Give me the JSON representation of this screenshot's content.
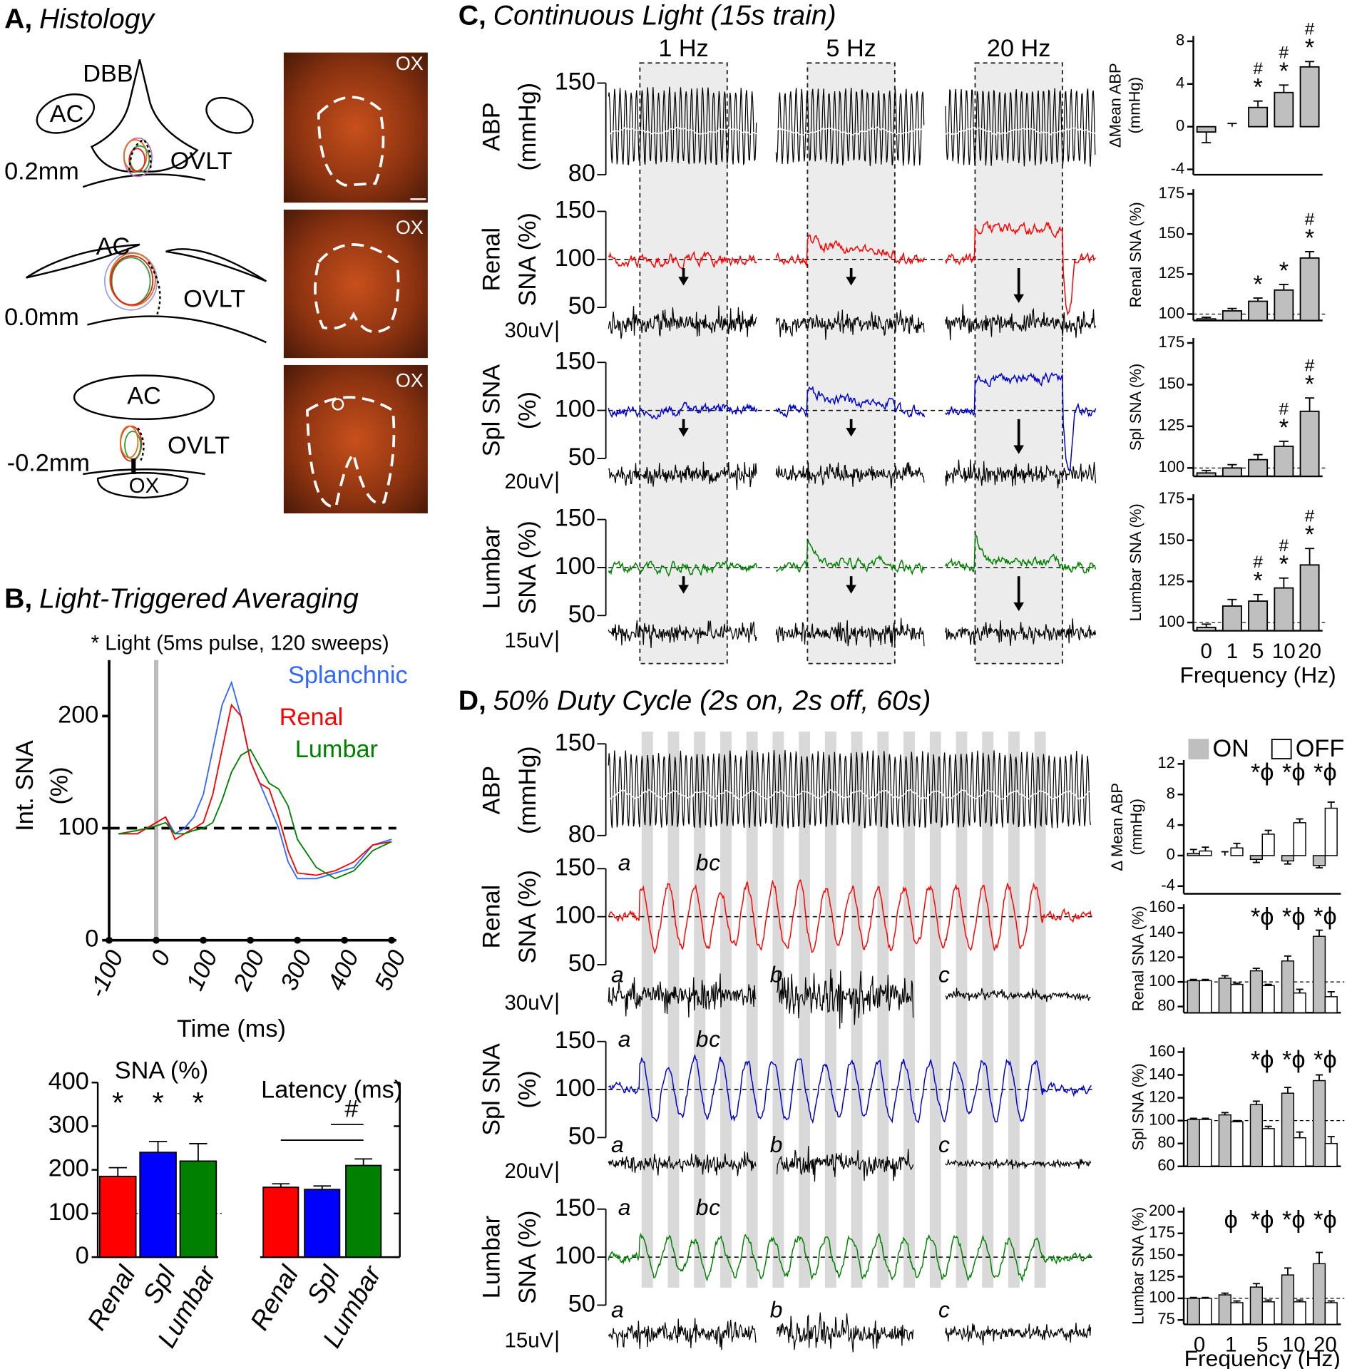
{
  "panel_a": {
    "label": "A,",
    "title": "Histology",
    "sections": [
      {
        "depth": "0.2mm",
        "structures": [
          "DBB",
          "AC",
          "OVLT"
        ]
      },
      {
        "depth": "0.0mm",
        "structures": [
          "AC",
          "OVLT"
        ]
      },
      {
        "depth": "-0.2mm",
        "structures": [
          "AC",
          "OVLT",
          "OX"
        ]
      }
    ],
    "image_label": "OX"
  },
  "panel_b": {
    "label": "B,",
    "title": "Light-Triggered Averaging"
  },
  "panel_c": {
    "label": "C,",
    "title": "Continuous Light (15s train)",
    "trains": [
      "1 Hz",
      "5 Hz",
      "20 Hz"
    ],
    "rows": [
      {
        "label": [
          "ABP",
          "(mmHg)"
        ],
        "ticks": [
          150,
          80
        ]
      },
      {
        "label": [
          "Renal",
          "SNA (%)"
        ],
        "ticks": [
          150,
          100,
          50
        ],
        "scale": "30uV"
      },
      {
        "label": [
          "Spl SNA",
          "(%)"
        ],
        "ticks": [
          150,
          100,
          50
        ],
        "scale": "20uV"
      },
      {
        "label": [
          "Lumbar",
          "SNA (%)"
        ],
        "ticks": [
          150,
          100,
          50
        ],
        "scale": "15uV"
      }
    ]
  },
  "panel_d": {
    "label": "D,",
    "title": "50% Duty Cycle (2s on, 2s off, 60s)",
    "markers": [
      "a",
      "b",
      "c"
    ],
    "rows": [
      {
        "label": [
          "ABP",
          "(mmHg)"
        ],
        "ticks": [
          150,
          80
        ]
      },
      {
        "label": [
          "Renal",
          "SNA (%)"
        ],
        "ticks": [
          150,
          100,
          50
        ],
        "scale": "30uV"
      },
      {
        "label": [
          "Spl SNA",
          "(%)"
        ],
        "ticks": [
          150,
          100,
          50
        ],
        "scale": "20uV"
      },
      {
        "label": [
          "Lumbar",
          "SNA (%)"
        ],
        "ticks": [
          150,
          100,
          50
        ],
        "scale": "15uV"
      }
    ]
  },
  "chart_data": [
    {
      "type": "line",
      "subtitle": "* Light (5ms pulse, 120 sweeps)",
      "xlabel": "Time (ms)",
      "ylabel": [
        "Int. SNA",
        "(%)"
      ],
      "x": [
        -80,
        -40,
        0,
        20,
        40,
        60,
        80,
        100,
        120,
        140,
        160,
        180,
        200,
        220,
        240,
        260,
        280,
        300,
        340,
        380,
        420,
        460,
        500
      ],
      "series": [
        {
          "name": "Splanchnic",
          "color": "#3366ff",
          "values": [
            95,
            95,
            105,
            110,
            95,
            100,
            110,
            130,
            170,
            210,
            230,
            200,
            160,
            140,
            120,
            100,
            70,
            55,
            55,
            60,
            65,
            85,
            90
          ]
        },
        {
          "name": "Renal",
          "color": "#ff0000",
          "values": [
            95,
            95,
            105,
            110,
            90,
            95,
            100,
            105,
            130,
            170,
            210,
            200,
            160,
            140,
            135,
            110,
            80,
            60,
            58,
            62,
            70,
            85,
            88
          ]
        },
        {
          "name": "Lumbar",
          "color": "#008000",
          "values": [
            95,
            98,
            102,
            105,
            95,
            95,
            98,
            100,
            105,
            125,
            150,
            165,
            170,
            155,
            140,
            135,
            120,
            90,
            65,
            55,
            62,
            80,
            88
          ]
        }
      ],
      "xlim": [
        -100,
        510
      ],
      "xticks": [
        -100,
        0,
        100,
        200,
        300,
        400,
        500
      ],
      "ylim": [
        0,
        250
      ],
      "yticks": [
        0,
        100,
        200
      ],
      "ref_line": 100,
      "light_at": 0
    },
    {
      "type": "bar",
      "title": "SNA (%)",
      "categories": [
        "Renal",
        "Spl",
        "Lumbar"
      ],
      "values": [
        185,
        240,
        220
      ],
      "errors": [
        20,
        25,
        40
      ],
      "colors": [
        "#ff0000",
        "#0000ff",
        "#008000"
      ],
      "ylim": [
        0,
        400
      ],
      "yticks": [
        0,
        100,
        200,
        300,
        400
      ],
      "ref_line": 100,
      "annotations": [
        "*",
        "*",
        "*"
      ]
    },
    {
      "type": "bar",
      "title": "Latency (ms)",
      "categories": [
        "Renal",
        "Spl",
        "Lumbar"
      ],
      "values": [
        160,
        155,
        210
      ],
      "errors": [
        8,
        8,
        15
      ],
      "colors": [
        "#ff0000",
        "#0000ff",
        "#008000"
      ],
      "ylim": [
        0,
        400
      ],
      "yticks": [
        0,
        100,
        200,
        300,
        400
      ],
      "tick_labels": false,
      "axis_side": "right",
      "significance": "#"
    },
    {
      "type": "bar",
      "ylabel": [
        "ΔMean ABP",
        "(mmHg)"
      ],
      "values": [
        -0.5,
        0,
        1.8,
        3.2,
        5.6
      ],
      "errors": [
        1,
        0.3,
        0.6,
        0.7,
        0.5
      ],
      "color": "#bfbfbf",
      "ylim": [
        -4.5,
        8.5
      ],
      "yticks": [
        -4,
        0,
        4,
        8
      ],
      "annotations": [
        null,
        null,
        [
          "#",
          "*"
        ],
        [
          "#",
          "*"
        ],
        [
          "#",
          "*"
        ]
      ]
    },
    {
      "type": "bar",
      "ylabel": [
        "Renal SNA (%)"
      ],
      "values": [
        97,
        102,
        108,
        115,
        135
      ],
      "errors": [
        1,
        1.5,
        2,
        3.5,
        4
      ],
      "color": "#bfbfbf",
      "ylim": [
        96,
        178
      ],
      "yticks": [
        100,
        125,
        150,
        175
      ],
      "ref_line": 100,
      "annotations": [
        null,
        null,
        [
          "*"
        ],
        [
          "*"
        ],
        [
          "#",
          "*"
        ]
      ]
    },
    {
      "type": "bar",
      "ylabel": [
        "Spl SNA (%)"
      ],
      "values": [
        97,
        100,
        105,
        113,
        134
      ],
      "errors": [
        1.5,
        2,
        3,
        3,
        8
      ],
      "color": "#bfbfbf",
      "ylim": [
        95,
        178
      ],
      "yticks": [
        100,
        125,
        150,
        175
      ],
      "ref_line": 100,
      "annotations": [
        null,
        null,
        null,
        [
          "#",
          "*"
        ],
        [
          "#",
          "*"
        ]
      ]
    },
    {
      "type": "bar",
      "ylabel": [
        "Lumbar SNA (%)"
      ],
      "xlabel": "Frequency (Hz)",
      "categories": [
        "0",
        "1",
        "5",
        "10",
        "20"
      ],
      "values": [
        97,
        110,
        113,
        121,
        135
      ],
      "errors": [
        2,
        4,
        4,
        6,
        10
      ],
      "color": "#bfbfbf",
      "ylim": [
        95,
        178
      ],
      "yticks": [
        100,
        125,
        150,
        175
      ],
      "ref_line": 100,
      "annotations": [
        null,
        null,
        [
          "#",
          "*"
        ],
        [
          "#",
          "*"
        ],
        [
          "#",
          "*"
        ]
      ]
    },
    {
      "type": "grouped_bar",
      "ylabel": [
        "Δ Mean ABP",
        "(mmHg)"
      ],
      "series": [
        {
          "name": "ON",
          "color": "#bfbfbf",
          "values": [
            0.3,
            0,
            -0.5,
            -0.7,
            -1.3
          ],
          "errors": [
            0.5,
            0.5,
            0.4,
            0.4,
            0.3
          ]
        },
        {
          "name": "OFF",
          "color": "#ffffff",
          "values": [
            0.6,
            1,
            2.8,
            4.3,
            6.2
          ],
          "errors": [
            0.5,
            0.6,
            0.5,
            0.5,
            0.8
          ]
        }
      ],
      "ylim": [
        -5,
        12.5
      ],
      "yticks": [
        -4,
        0,
        4,
        8,
        12
      ],
      "legend": "top",
      "annotations": [
        null,
        null,
        "*ϕ",
        "*ϕ",
        "*ϕ"
      ]
    },
    {
      "type": "grouped_bar",
      "ylabel": [
        "Renal SNA (%)"
      ],
      "series": [
        {
          "color": "#bfbfbf",
          "values": [
            101,
            103,
            109,
            117,
            137
          ],
          "errors": [
            1,
            2,
            2,
            4,
            5
          ]
        },
        {
          "color": "#ffffff",
          "values": [
            101,
            98,
            97,
            91,
            88
          ],
          "errors": [
            1,
            1,
            1,
            3,
            4
          ]
        }
      ],
      "ylim": [
        75,
        163
      ],
      "yticks": [
        80,
        100,
        120,
        140,
        160
      ],
      "ref_line": 100,
      "annotations": [
        null,
        null,
        "*ϕ",
        "*ϕ",
        "*ϕ"
      ]
    },
    {
      "type": "grouped_bar",
      "ylabel": [
        "Spl SNA (%)"
      ],
      "series": [
        {
          "color": "#bfbfbf",
          "values": [
            101,
            105,
            114,
            124,
            135
          ],
          "errors": [
            1,
            2,
            3,
            5,
            5
          ]
        },
        {
          "color": "#ffffff",
          "values": [
            101,
            99,
            93,
            85,
            80
          ],
          "errors": [
            1,
            1,
            2,
            5,
            6
          ]
        }
      ],
      "ylim": [
        60,
        164
      ],
      "yticks": [
        60,
        80,
        100,
        120,
        140,
        160
      ],
      "ref_line": 100,
      "annotations": [
        null,
        null,
        "*ϕ",
        "*ϕ",
        "*ϕ"
      ]
    },
    {
      "type": "grouped_bar",
      "ylabel": [
        "Lumbar SNA (%)"
      ],
      "xlabel": "Frequency (Hz)",
      "categories": [
        "0",
        "1",
        "5",
        "10",
        "20"
      ],
      "series": [
        {
          "color": "#bfbfbf",
          "values": [
            100,
            104,
            113,
            127,
            140
          ],
          "errors": [
            1,
            2,
            4,
            8,
            13
          ]
        },
        {
          "color": "#ffffff",
          "values": [
            100,
            95,
            96,
            96,
            95
          ],
          "errors": [
            1,
            2,
            2,
            2,
            2
          ]
        }
      ],
      "ylim": [
        70,
        205
      ],
      "yticks": [
        75,
        100,
        125,
        150,
        175,
        200
      ],
      "ref_line": 100,
      "annotations": [
        null,
        "ϕ",
        "*ϕ",
        "*ϕ",
        "*ϕ"
      ]
    }
  ]
}
